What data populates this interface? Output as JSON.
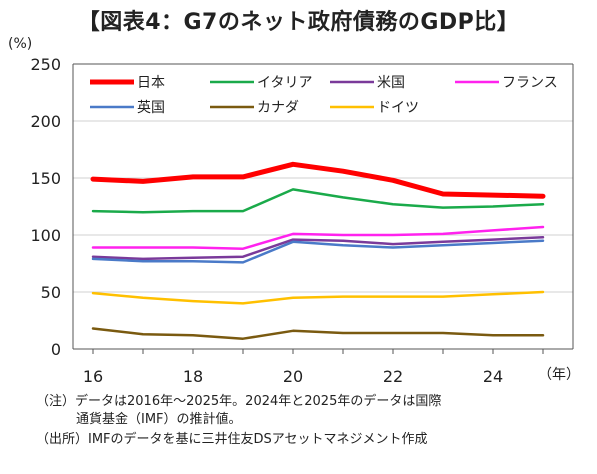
{
  "chart_data": {
    "type": "line",
    "title": "【図表4：G7のネット政府債務のGDP比】",
    "y_unit": "(%)",
    "x_unit": "（年）",
    "x": [
      16,
      17,
      18,
      19,
      20,
      21,
      22,
      23,
      24,
      25
    ],
    "x_ticks": [
      "16",
      "18",
      "20",
      "22",
      "24"
    ],
    "x_tick_values": [
      16,
      18,
      20,
      22,
      24
    ],
    "ylim": [
      0,
      250
    ],
    "y_ticks": [
      0,
      50,
      100,
      150,
      200,
      250
    ],
    "grid": true,
    "legend_position": "top",
    "series": [
      {
        "name": "日本",
        "color": "#ff0000",
        "width": 5,
        "values": [
          149,
          147,
          151,
          151,
          162,
          156,
          148,
          136,
          135,
          134
        ]
      },
      {
        "name": "イタリア",
        "color": "#1aaa4a",
        "width": 2.5,
        "values": [
          121,
          120,
          121,
          121,
          140,
          133,
          127,
          124,
          125,
          127
        ]
      },
      {
        "name": "米国",
        "color": "#7a3a9a",
        "width": 2.5,
        "values": [
          81,
          79,
          80,
          81,
          96,
          95,
          92,
          94,
          96,
          98
        ]
      },
      {
        "name": "フランス",
        "color": "#ff22ee",
        "width": 2.5,
        "values": [
          89,
          89,
          89,
          88,
          101,
          100,
          100,
          101,
          104,
          107
        ]
      },
      {
        "name": "英国",
        "color": "#4a7ac8",
        "width": 2.5,
        "values": [
          79,
          77,
          77,
          76,
          94,
          91,
          89,
          91,
          93,
          95
        ]
      },
      {
        "name": "カナダ",
        "color": "#7a5a10",
        "width": 2.5,
        "values": [
          18,
          13,
          12,
          9,
          16,
          14,
          14,
          14,
          12,
          12
        ]
      },
      {
        "name": "ドイツ",
        "color": "#ffc000",
        "width": 2.5,
        "values": [
          49,
          45,
          42,
          40,
          45,
          46,
          46,
          46,
          48,
          50
        ]
      }
    ]
  },
  "notes": {
    "line1": "（注）データは2016年～2025年。2024年と2025年のデータは国際",
    "line2": "通貨基金（IMF）の推計値。",
    "line3": "（出所）IMFのデータを基に三井住友DSアセットマネジメント作成"
  }
}
